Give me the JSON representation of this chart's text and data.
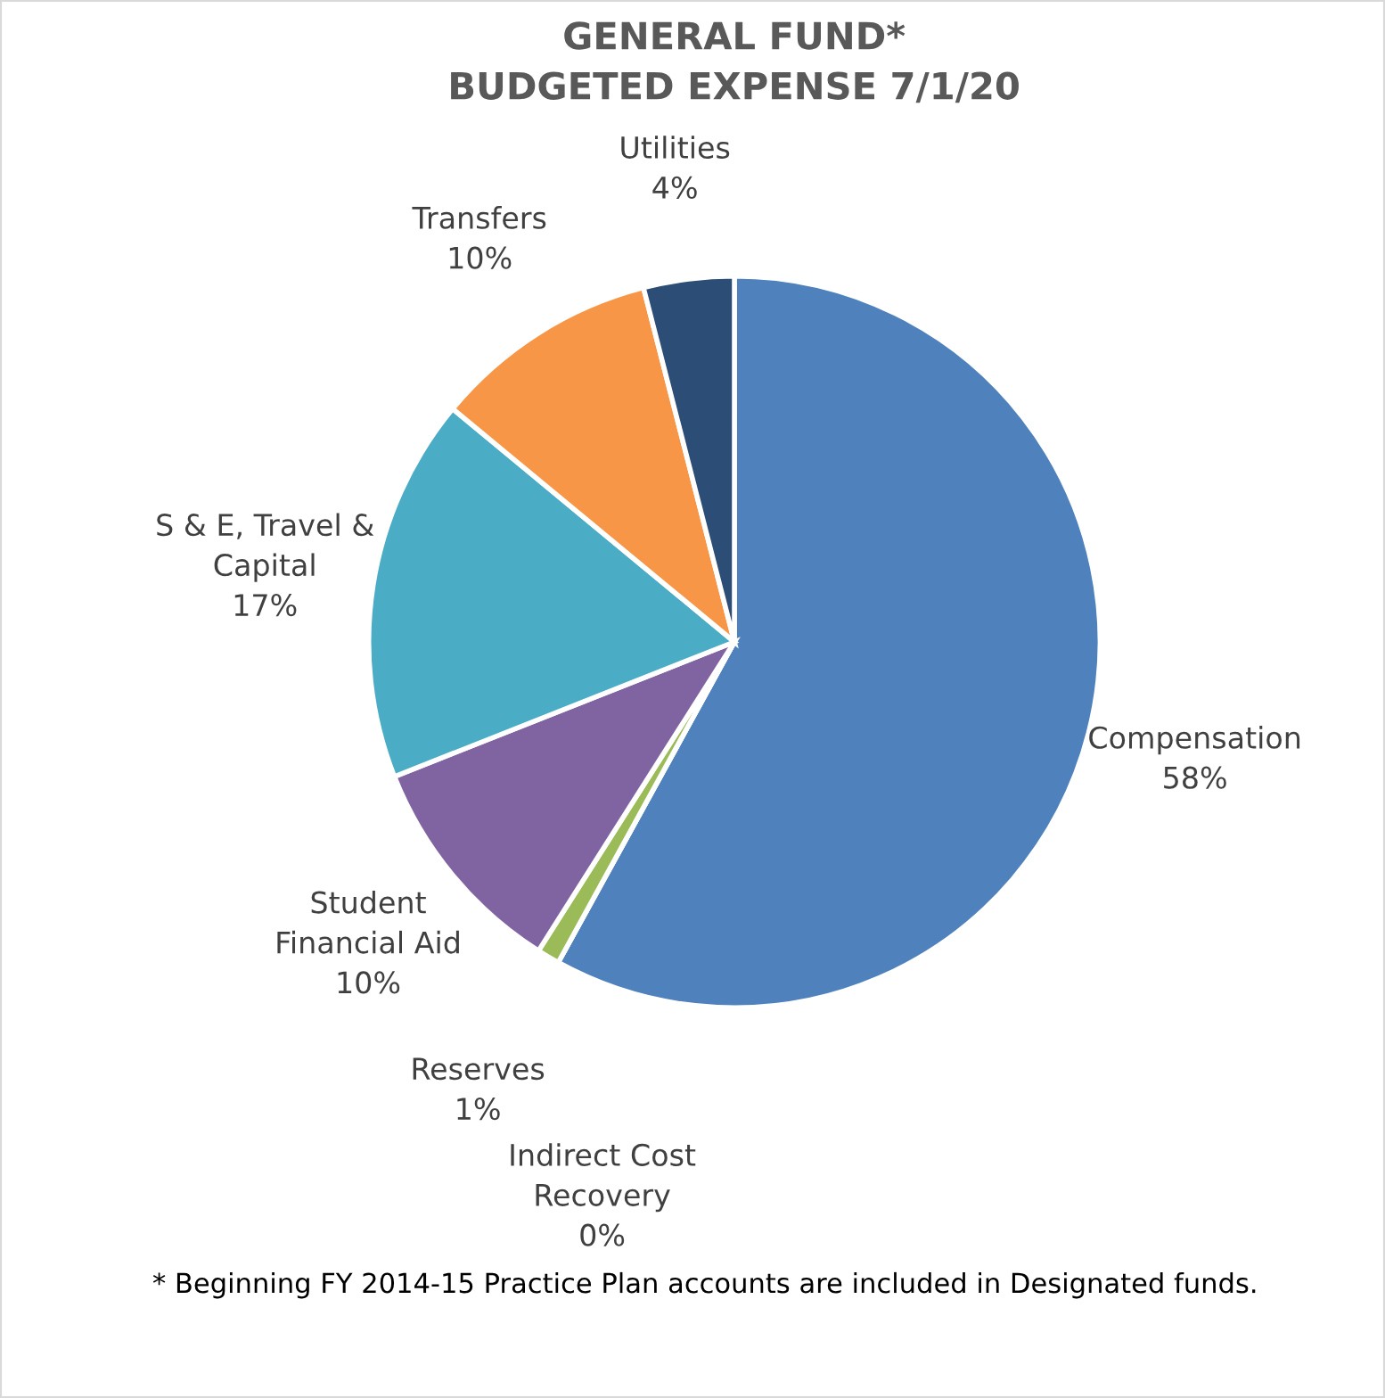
{
  "chart_data": {
    "type": "pie",
    "title": "GENERAL FUND*\nBUDGETED EXPENSE 7/1/20",
    "categories": [
      "Compensation",
      "Indirect Cost\nRecovery",
      "Reserves",
      "Student\nFinancial Aid",
      "S & E, Travel &\nCapital",
      "Transfers",
      "Utilities"
    ],
    "values": [
      58,
      0,
      1,
      10,
      17,
      10,
      4
    ],
    "colors": [
      "#4f81bd",
      "#c0504d",
      "#9bbb59",
      "#8064a2",
      "#4bacc6",
      "#f79646",
      "#2c4d75"
    ],
    "data_labels": true,
    "value_labels": [
      "58%",
      "0%",
      "1%",
      "10%",
      "17%",
      "10%",
      "4%"
    ],
    "legend": false,
    "annotations": [
      "* Beginning FY 2014-15 Practice Plan accounts are included in Designated funds."
    ]
  }
}
